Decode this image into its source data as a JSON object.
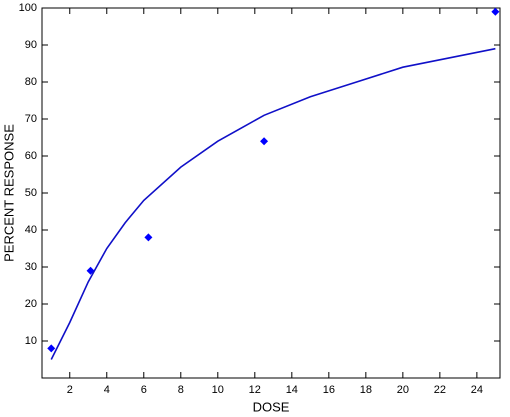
{
  "chart_data": {
    "type": "scatter",
    "xlabel": "DOSE",
    "ylabel": "PERCENT  RESPONSE",
    "xlim": [
      0.5,
      25.25
    ],
    "ylim": [
      0,
      100
    ],
    "xticks": [
      2,
      4,
      6,
      8,
      10,
      12,
      14,
      16,
      18,
      20,
      22,
      24
    ],
    "yticks": [
      10,
      20,
      30,
      40,
      50,
      60,
      70,
      80,
      90,
      100
    ],
    "series": [
      {
        "type": "scatter",
        "color": "#0000ff",
        "x": [
          1,
          3.125,
          6.25,
          12.5,
          25
        ],
        "values": [
          8,
          29,
          38,
          64,
          99
        ]
      },
      {
        "type": "line",
        "color": "#1010c8",
        "x": [
          1,
          2,
          3,
          4,
          5,
          6,
          8,
          10,
          12.5,
          15,
          17.5,
          20,
          22.5,
          25
        ],
        "values": [
          5,
          15,
          26,
          35,
          42,
          48,
          57,
          64,
          71,
          76,
          80,
          84,
          86.5,
          89
        ]
      }
    ]
  }
}
